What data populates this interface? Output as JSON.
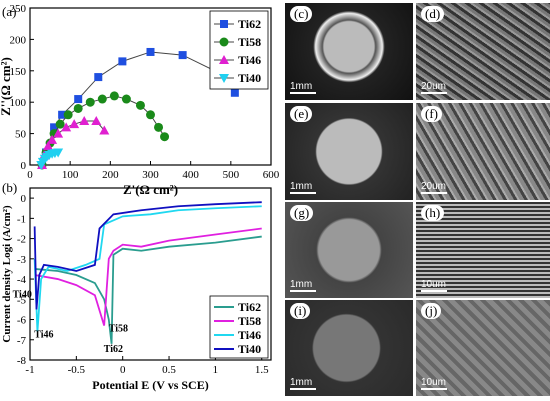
{
  "panel_labels": {
    "a": "(a)",
    "b": "(b)",
    "c": "(c)",
    "d": "(d)",
    "e": "(e)",
    "f": "(f)",
    "g": "(g)",
    "h": "(h)",
    "i": "(i)",
    "j": "(j)"
  },
  "chart_data": [
    {
      "type": "line",
      "panel": "(a)",
      "xlabel": "Z'(Ω cm²)",
      "ylabel": "Z''(Ω cm²)",
      "xlim": [
        0,
        600
      ],
      "ylim": [
        0,
        250
      ],
      "xticks": [
        0,
        100,
        200,
        300,
        400,
        500,
        600
      ],
      "yticks": [
        0,
        50,
        100,
        150,
        200,
        250
      ],
      "legend_position": "top-right",
      "series": [
        {
          "name": "Ti62",
          "color": "#1f4fe0",
          "marker": "square",
          "x": [
            30,
            40,
            60,
            80,
            120,
            170,
            230,
            300,
            380,
            460,
            510
          ],
          "y": [
            0,
            20,
            60,
            80,
            105,
            140,
            165,
            180,
            175,
            150,
            115
          ]
        },
        {
          "name": "Ti58",
          "color": "#1a8a1a",
          "marker": "circle",
          "x": [
            30,
            40,
            50,
            60,
            75,
            95,
            120,
            150,
            180,
            210,
            240,
            275,
            300,
            320,
            335
          ],
          "y": [
            0,
            20,
            35,
            50,
            65,
            80,
            90,
            100,
            105,
            110,
            105,
            95,
            80,
            60,
            45
          ]
        },
        {
          "name": "Ti46",
          "color": "#e020d0",
          "marker": "triangle",
          "x": [
            30,
            35,
            45,
            55,
            70,
            90,
            110,
            135,
            165,
            185
          ],
          "y": [
            0,
            15,
            30,
            40,
            50,
            60,
            65,
            70,
            70,
            55
          ]
        },
        {
          "name": "Ti40",
          "color": "#20d0f0",
          "marker": "triangle-down",
          "x": [
            28,
            32,
            37,
            42,
            48,
            55,
            62,
            70
          ],
          "y": [
            0,
            5,
            10,
            13,
            16,
            18,
            19,
            20
          ]
        }
      ]
    },
    {
      "type": "line",
      "panel": "(b)",
      "xlabel": "Potential E (V vs SCE)",
      "ylabel": "Current density Logi (A/cm²)",
      "xlim": [
        -1.0,
        1.6
      ],
      "ylim": [
        -8,
        0.5
      ],
      "xticks": [
        -1.0,
        -0.5,
        0.0,
        0.5,
        1.0,
        1.5
      ],
      "yticks": [
        -8,
        -7,
        -6,
        -5,
        -4,
        -3,
        -2,
        -1,
        0
      ],
      "legend_position": "bottom-right",
      "annotations": [
        "Ti40",
        "Ti46",
        "Ti58",
        "Ti62"
      ],
      "series": [
        {
          "name": "Ti62",
          "color": "#2a9d8f",
          "x": [
            -0.95,
            -0.7,
            -0.5,
            -0.3,
            -0.2,
            -0.15,
            -0.12,
            -0.1,
            0.0,
            0.2,
            0.5,
            1.0,
            1.5
          ],
          "y": [
            -3.5,
            -3.6,
            -3.8,
            -4.2,
            -5.0,
            -6.0,
            -7.2,
            -2.8,
            -2.5,
            -2.6,
            -2.4,
            -2.2,
            -1.9
          ]
        },
        {
          "name": "Ti58",
          "color": "#e020e0",
          "x": [
            -0.95,
            -0.7,
            -0.5,
            -0.3,
            -0.2,
            -0.15,
            -0.1,
            0.0,
            0.2,
            0.5,
            1.0,
            1.5
          ],
          "y": [
            -3.8,
            -4.0,
            -4.3,
            -4.8,
            -6.3,
            -3.0,
            -2.6,
            -2.3,
            -2.4,
            -2.1,
            -1.8,
            -1.5
          ]
        },
        {
          "name": "Ti46",
          "color": "#20d8f0",
          "x": [
            -0.95,
            -0.92,
            -0.88,
            -0.8,
            -0.6,
            -0.4,
            -0.25,
            -0.2,
            0.0,
            0.3,
            0.6,
            1.0,
            1.5
          ],
          "y": [
            -3.0,
            -6.6,
            -4.0,
            -3.4,
            -3.6,
            -3.3,
            -3.0,
            -1.3,
            -0.9,
            -0.8,
            -0.6,
            -0.5,
            -0.4
          ]
        },
        {
          "name": "Ti40",
          "color": "#1010c0",
          "x": [
            -0.95,
            -0.93,
            -0.9,
            -0.85,
            -0.7,
            -0.5,
            -0.3,
            -0.25,
            -0.1,
            0.2,
            0.6,
            1.0,
            1.5
          ],
          "y": [
            -1.4,
            -5.5,
            -3.8,
            -3.3,
            -3.4,
            -3.6,
            -3.3,
            -1.5,
            -0.8,
            -0.6,
            -0.4,
            -0.3,
            -0.2
          ]
        }
      ]
    }
  ],
  "sem_images": [
    {
      "label": "(c)",
      "scale": "1mm"
    },
    {
      "label": "(d)",
      "scale": "20um"
    },
    {
      "label": "(e)",
      "scale": "1mm"
    },
    {
      "label": "(f)",
      "scale": "20um"
    },
    {
      "label": "(g)",
      "scale": "1mm"
    },
    {
      "label": "(h)",
      "scale": "10um"
    },
    {
      "label": "(i)",
      "scale": "1mm"
    },
    {
      "label": "(j)",
      "scale": "10um"
    }
  ]
}
